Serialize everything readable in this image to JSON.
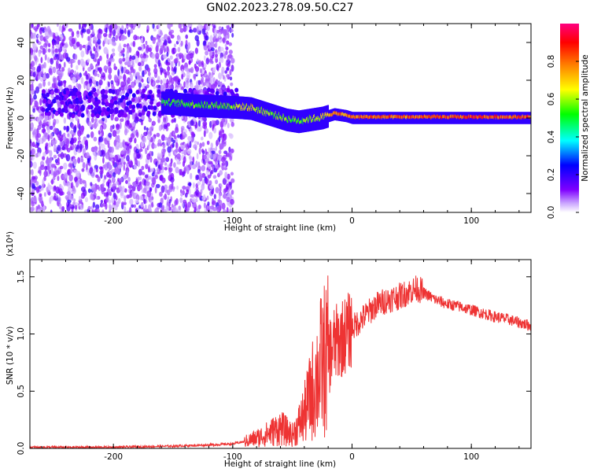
{
  "figure": {
    "title": "GN02.2023.278.09.50.C27"
  },
  "chart_data": [
    {
      "type": "heatmap",
      "name": "spectrogram",
      "xlabel": "Height of straight line (km)",
      "ylabel": "Frequency (Hz)",
      "xlim": [
        -270,
        150
      ],
      "ylim": [
        -50,
        50
      ],
      "xticks": [
        -200,
        -100,
        0,
        100
      ],
      "xtick_labels": [
        "-200",
        "-100",
        "0",
        "100"
      ],
      "yticks": [
        -40,
        -20,
        0,
        20,
        40
      ],
      "ytick_labels": [
        "-40",
        "-20",
        "0",
        "20",
        "40"
      ],
      "ridge": {
        "x": [
          -160,
          -130,
          -110,
          -95,
          -85,
          -75,
          -65,
          -55,
          -45,
          -35,
          -25,
          -15,
          -5,
          0,
          20,
          40,
          60,
          80,
          100,
          120,
          150
        ],
        "y": [
          8,
          6.5,
          6,
          5.5,
          5,
          3,
          1,
          -1,
          -2,
          -1,
          0,
          2,
          1,
          0,
          0,
          0,
          0,
          0,
          0,
          0,
          0
        ],
        "amplitude": [
          0.55,
          0.6,
          0.6,
          0.65,
          0.7,
          0.65,
          0.6,
          0.6,
          0.6,
          0.65,
          0.7,
          0.85,
          0.8,
          0.85,
          0.88,
          0.85,
          0.9,
          0.9,
          0.9,
          0.9,
          0.9
        ]
      },
      "noise_region": {
        "x_start": -270,
        "x_end": -100
      },
      "colorbar": {
        "label": "Normalized spectral amplitude",
        "range": [
          0,
          1
        ],
        "ticks": [
          0,
          0.2,
          0.4,
          0.6,
          0.8
        ],
        "tick_labels": [
          "0.0",
          "0.2",
          "0.4",
          "0.6",
          "0.8"
        ],
        "colors": [
          "#ffffff",
          "#7f00ff",
          "#0000ff",
          "#00ffff",
          "#00ff00",
          "#ffff00",
          "#ff8000",
          "#ff0000",
          "#ff0080"
        ]
      }
    },
    {
      "type": "line",
      "name": "snr",
      "xlabel": "Height of straight line (km)",
      "ylabel": "SNR (10 * v/v)",
      "y_multiplier": "(x10⁴)",
      "xlim": [
        -270,
        150
      ],
      "ylim": [
        0,
        1.65
      ],
      "xticks": [
        -200,
        -100,
        0,
        100
      ],
      "xtick_labels": [
        "-200",
        "-100",
        "0",
        "100"
      ],
      "yticks": [
        0,
        0.5,
        1.0,
        1.5
      ],
      "ytick_labels": [
        "0.0",
        "0.5",
        "1.0",
        "1.5"
      ],
      "color": "#ee3333",
      "series": [
        {
          "x": [
            -270,
            -200,
            -150,
            -120,
            -100,
            -90,
            -80,
            -70,
            -60,
            -55,
            -50,
            -45,
            -40,
            -35,
            -30,
            -25,
            -20,
            -15,
            -10,
            -5,
            0,
            10,
            20,
            30,
            40,
            50,
            55,
            60,
            70,
            80,
            90,
            100,
            110,
            120,
            130,
            140,
            150
          ],
          "y": [
            0.01,
            0.01,
            0.02,
            0.03,
            0.04,
            0.06,
            0.09,
            0.13,
            0.18,
            0.15,
            0.12,
            0.2,
            0.3,
            0.45,
            0.6,
            0.75,
            0.8,
            0.9,
            0.95,
            1.0,
            1.05,
            1.15,
            1.25,
            1.3,
            1.33,
            1.38,
            1.4,
            1.36,
            1.3,
            1.26,
            1.24,
            1.21,
            1.18,
            1.15,
            1.13,
            1.1,
            1.07
          ]
        }
      ]
    }
  ]
}
